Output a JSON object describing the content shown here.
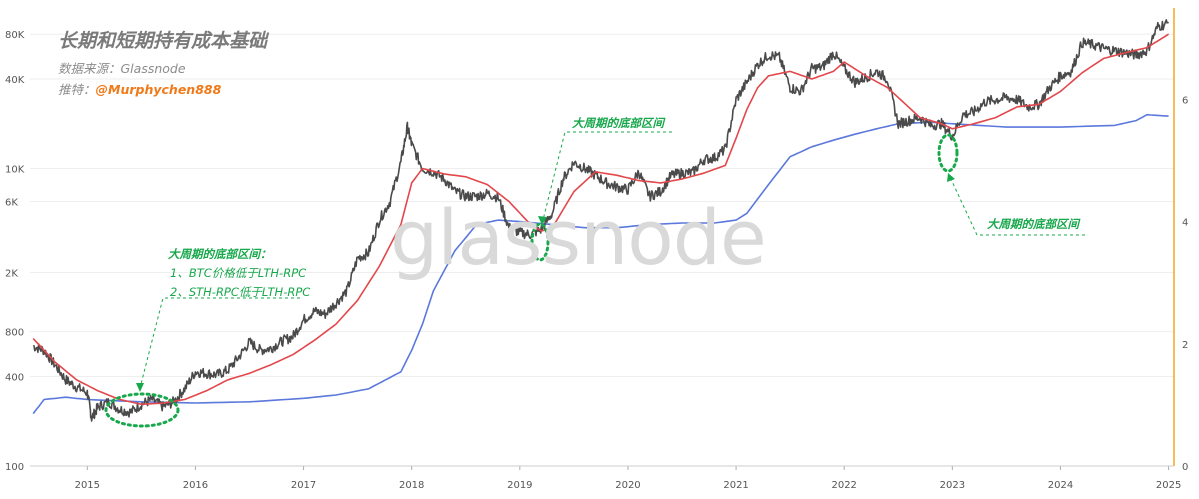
{
  "title": "长期和短期持有成本基础",
  "source_text": "数据来源：Glassnode",
  "twitter_prefix": "推特：",
  "twitter_handle": "@Murphychen888",
  "watermark": "glassnode",
  "annotations": {
    "bottom_range_1": "大周期的底部区间",
    "bottom_range_2": "大周期的底部区间",
    "legend_title": "大周期的底部区间：",
    "legend_line1": "1、BTC价格低于LTH-RPC",
    "legend_line2": "2、STH-RPC低于LTH-RPC"
  },
  "colors": {
    "price": "#4a4a4a",
    "sth_rpc": "#e2474b",
    "lth_rpc": "#5b78dc",
    "annotation": "#17a84b",
    "right_axis": "#f5a623"
  },
  "chart_data": {
    "type": "line",
    "y_scale": "log",
    "y_ticks": [
      "100",
      "400",
      "800",
      "2K",
      "6K",
      "10K",
      "40K",
      "80K"
    ],
    "y_tick_values": [
      100,
      400,
      800,
      2000,
      6000,
      10000,
      40000,
      80000
    ],
    "y_range": [
      100,
      120000
    ],
    "y_right_ticks": [
      "0",
      "2",
      "4",
      "6"
    ],
    "y_right_range": [
      0,
      7.5
    ],
    "x_ticks": [
      "2015",
      "2016",
      "2017",
      "2018",
      "2019",
      "2020",
      "2021",
      "2022",
      "2023",
      "2024",
      "2025"
    ],
    "x_range": [
      2014.47,
      2025.05
    ],
    "series": [
      {
        "key": "price",
        "x": [
          2014.5,
          2014.6,
          2014.7,
          2014.8,
          2014.9,
          2015.0,
          2015.04,
          2015.1,
          2015.2,
          2015.3,
          2015.4,
          2015.5,
          2015.6,
          2015.7,
          2015.8,
          2015.9,
          2016.0,
          2016.1,
          2016.2,
          2016.3,
          2016.4,
          2016.5,
          2016.6,
          2016.7,
          2016.8,
          2016.9,
          2017.0,
          2017.1,
          2017.2,
          2017.3,
          2017.4,
          2017.5,
          2017.6,
          2017.7,
          2017.8,
          2017.9,
          2017.96,
          2018.0,
          2018.1,
          2018.2,
          2018.3,
          2018.4,
          2018.5,
          2018.6,
          2018.7,
          2018.8,
          2018.9,
          2019.0,
          2019.1,
          2019.2,
          2019.3,
          2019.4,
          2019.5,
          2019.6,
          2019.7,
          2019.8,
          2019.9,
          2020.0,
          2020.1,
          2020.2,
          2020.3,
          2020.4,
          2020.5,
          2020.6,
          2020.7,
          2020.8,
          2020.9,
          2021.0,
          2021.1,
          2021.2,
          2021.3,
          2021.4,
          2021.5,
          2021.6,
          2021.7,
          2021.8,
          2021.9,
          2022.0,
          2022.1,
          2022.2,
          2022.3,
          2022.4,
          2022.5,
          2022.6,
          2022.7,
          2022.8,
          2022.9,
          2023.0,
          2023.1,
          2023.2,
          2023.3,
          2023.4,
          2023.5,
          2023.6,
          2023.7,
          2023.8,
          2023.9,
          2024.0,
          2024.1,
          2024.2,
          2024.3,
          2024.4,
          2024.5,
          2024.6,
          2024.7,
          2024.8,
          2024.9,
          2025.0
        ],
        "values": [
          640,
          600,
          480,
          380,
          340,
          310,
          210,
          250,
          270,
          240,
          230,
          260,
          280,
          250,
          270,
          330,
          430,
          420,
          410,
          440,
          540,
          680,
          600,
          620,
          690,
          740,
          960,
          1100,
          1050,
          1250,
          1500,
          2500,
          2700,
          4500,
          6000,
          11000,
          19000,
          14500,
          10000,
          9500,
          8500,
          7000,
          6500,
          6500,
          6800,
          6400,
          4000,
          3700,
          3600,
          3900,
          5000,
          8500,
          11000,
          10000,
          9000,
          8000,
          7500,
          7200,
          9500,
          6500,
          7000,
          9000,
          9300,
          9400,
          11500,
          11800,
          13500,
          29000,
          38000,
          50000,
          58000,
          56000,
          35000,
          33000,
          47000,
          48000,
          60000,
          47000,
          38000,
          41000,
          45000,
          40000,
          20000,
          21000,
          22000,
          19500,
          20000,
          16500,
          23000,
          24000,
          28000,
          29000,
          30000,
          29000,
          26000,
          27000,
          35000,
          42000,
          45000,
          70000,
          68000,
          64000,
          62000,
          60000,
          58000,
          62000,
          90000,
          95000
        ]
      },
      {
        "key": "sth_rpc",
        "x": [
          2014.5,
          2014.7,
          2014.9,
          2015.1,
          2015.3,
          2015.5,
          2015.7,
          2015.9,
          2016.1,
          2016.3,
          2016.5,
          2016.7,
          2016.9,
          2017.1,
          2017.3,
          2017.5,
          2017.7,
          2017.9,
          2018.0,
          2018.1,
          2018.3,
          2018.5,
          2018.7,
          2018.9,
          2019.1,
          2019.2,
          2019.3,
          2019.5,
          2019.7,
          2019.9,
          2020.1,
          2020.3,
          2020.5,
          2020.7,
          2020.9,
          2021.0,
          2021.1,
          2021.2,
          2021.3,
          2021.5,
          2021.7,
          2021.9,
          2022.0,
          2022.2,
          2022.4,
          2022.5,
          2022.7,
          2022.9,
          2023.0,
          2023.2,
          2023.4,
          2023.6,
          2023.8,
          2024.0,
          2024.2,
          2024.4,
          2024.6,
          2024.8,
          2025.0
        ],
        "values": [
          720,
          500,
          380,
          320,
          280,
          260,
          265,
          280,
          320,
          380,
          420,
          480,
          560,
          700,
          900,
          1300,
          2200,
          4200,
          8000,
          10000,
          9200,
          8800,
          7800,
          6000,
          4200,
          3800,
          4000,
          7000,
          9500,
          9000,
          8300,
          8000,
          8500,
          9300,
          10500,
          16000,
          25000,
          35000,
          42000,
          45000,
          40000,
          45000,
          52000,
          42000,
          35000,
          30000,
          22000,
          20000,
          18500,
          20000,
          22000,
          26000,
          27000,
          33000,
          44000,
          55000,
          60000,
          65000,
          80000
        ]
      },
      {
        "key": "lth_rpc",
        "x": [
          2014.5,
          2014.6,
          2014.8,
          2015.0,
          2015.5,
          2016.0,
          2016.5,
          2017.0,
          2017.3,
          2017.6,
          2017.9,
          2018.0,
          2018.1,
          2018.2,
          2018.4,
          2018.6,
          2018.8,
          2019.0,
          2019.3,
          2019.6,
          2019.9,
          2020.2,
          2020.5,
          2020.8,
          2021.0,
          2021.1,
          2021.3,
          2021.5,
          2021.7,
          2021.9,
          2022.1,
          2022.3,
          2022.5,
          2022.8,
          2023.0,
          2023.5,
          2024.0,
          2024.5,
          2024.7,
          2024.8,
          2025.0
        ],
        "values": [
          225,
          280,
          290,
          280,
          270,
          265,
          270,
          285,
          300,
          330,
          430,
          600,
          900,
          1500,
          2800,
          4200,
          4500,
          4400,
          4200,
          4000,
          4000,
          4200,
          4300,
          4300,
          4500,
          5000,
          7800,
          12000,
          14000,
          15500,
          17000,
          18500,
          20000,
          20500,
          20000,
          19000,
          19000,
          19500,
          21000,
          23000,
          22500
        ]
      }
    ]
  }
}
